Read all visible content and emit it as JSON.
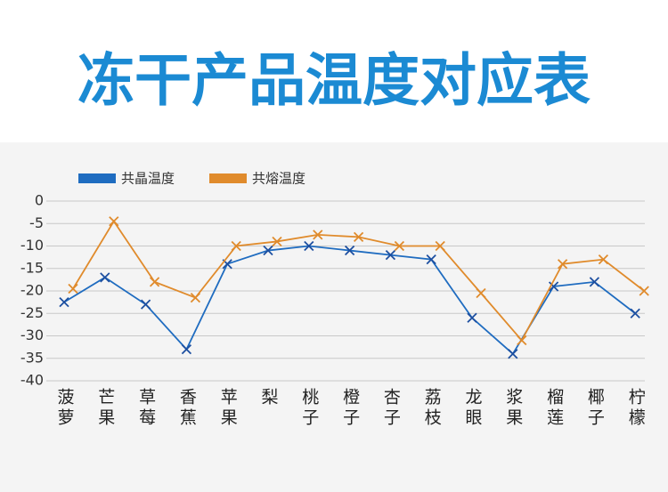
{
  "chart_data": {
    "type": "line",
    "title": "冻干产品温度对应表",
    "categories": [
      "菠萝",
      "芒果",
      "草莓",
      "香蕉",
      "苹果",
      "梨",
      "桃子",
      "橙子",
      "杏子",
      "荔枝",
      "龙眼",
      "浆果",
      "榴莲",
      "椰子",
      "柠檬"
    ],
    "series": [
      {
        "name": "共晶温度",
        "color": "#1f6cc0",
        "values": [
          -22.5,
          -17,
          -23,
          -33,
          -14,
          -11,
          -10,
          -11,
          -12,
          -13,
          -26,
          -34,
          -19,
          -18,
          -25
        ]
      },
      {
        "name": "共熔温度",
        "color": "#e08b2c",
        "values": [
          -19.5,
          -4.5,
          -18,
          -21.5,
          -10,
          -9,
          -7.5,
          -8,
          -10,
          -10,
          -20.5,
          -31,
          -14,
          -13,
          -20
        ]
      }
    ],
    "ylim": [
      -40,
      0
    ],
    "yticks": [
      0,
      -5,
      -10,
      -15,
      -20,
      -25,
      -30,
      -35,
      -40
    ],
    "grid": true,
    "legend": "top-left"
  }
}
